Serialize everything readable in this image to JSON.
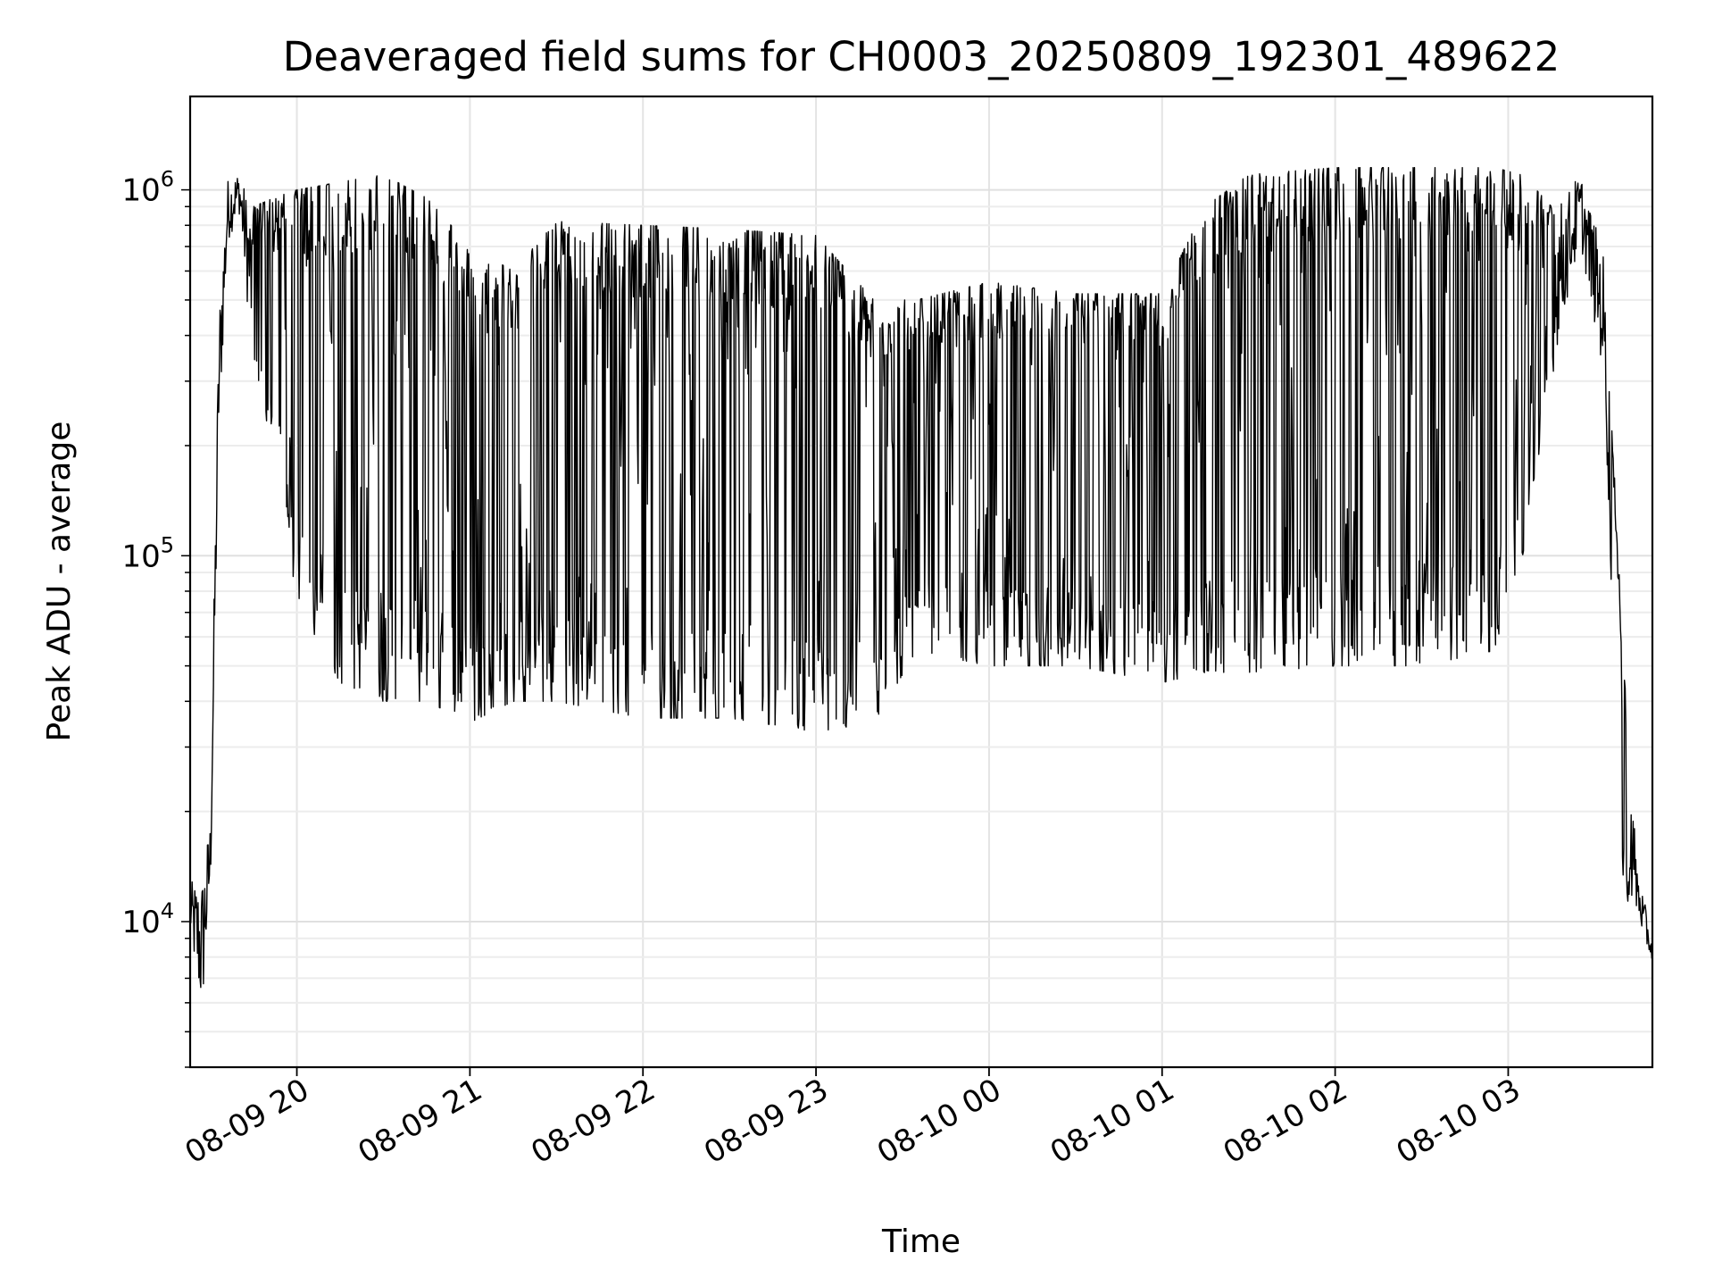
{
  "chart_data": {
    "type": "line",
    "title": "Deaveraged field sums for CH0003_20250809_192301_489622",
    "xlabel": "Time",
    "ylabel": "Peak ADU - average",
    "yscale": "log",
    "ylim": [
      4000,
      1800000
    ],
    "xlim": [
      "2025-08-09 19:23",
      "2025-08-10 03:50"
    ],
    "grid": true,
    "line_color": "#000000",
    "x_ticks": [
      {
        "value": "2025-08-09 20:00",
        "label": "08-09 20"
      },
      {
        "value": "2025-08-09 21:00",
        "label": "08-09 21"
      },
      {
        "value": "2025-08-09 22:00",
        "label": "08-09 22"
      },
      {
        "value": "2025-08-09 23:00",
        "label": "08-09 23"
      },
      {
        "value": "2025-08-10 00:00",
        "label": "08-10 00"
      },
      {
        "value": "2025-08-10 01:00",
        "label": "08-10 01"
      },
      {
        "value": "2025-08-10 02:00",
        "label": "08-10 02"
      },
      {
        "value": "2025-08-10 03:00",
        "label": "08-10 03"
      }
    ],
    "y_ticks": [
      {
        "value": 10000,
        "base": "10",
        "exp": "4"
      },
      {
        "value": 100000,
        "base": "10",
        "exp": "5"
      },
      {
        "value": 1000000,
        "base": "10",
        "exp": "6"
      }
    ],
    "series": [
      {
        "envelope_points": [
          {
            "x": "2025-08-09 19:23",
            "lo": 9000,
            "hi": 13000
          },
          {
            "x": "2025-08-09 19:27",
            "lo": 5000,
            "hi": 14000
          },
          {
            "x": "2025-08-09 19:30",
            "lo": 11000,
            "hi": 20000
          },
          {
            "x": "2025-08-09 19:33",
            "lo": 200000,
            "hi": 500000
          },
          {
            "x": "2025-08-09 19:36",
            "lo": 700000,
            "hi": 1100000
          },
          {
            "x": "2025-08-09 19:40",
            "lo": 850000,
            "hi": 1150000
          },
          {
            "x": "2025-08-09 19:45",
            "lo": 300000,
            "hi": 900000
          },
          {
            "x": "2025-08-09 19:52",
            "lo": 200000,
            "hi": 950000
          },
          {
            "x": "2025-08-09 20:00",
            "lo": 75000,
            "hi": 1000000
          },
          {
            "x": "2025-08-09 20:15",
            "lo": 45000,
            "hi": 1050000
          },
          {
            "x": "2025-08-09 20:30",
            "lo": 40000,
            "hi": 1100000
          },
          {
            "x": "2025-08-09 20:45",
            "lo": 40000,
            "hi": 950000
          },
          {
            "x": "2025-08-09 21:00",
            "lo": 35000,
            "hi": 700000
          },
          {
            "x": "2025-08-09 21:15",
            "lo": 40000,
            "hi": 600000
          },
          {
            "x": "2025-08-09 21:30",
            "lo": 40000,
            "hi": 820000
          },
          {
            "x": "2025-08-09 22:00",
            "lo": 36000,
            "hi": 800000
          },
          {
            "x": "2025-08-09 22:30",
            "lo": 36000,
            "hi": 780000
          },
          {
            "x": "2025-08-09 23:00",
            "lo": 33000,
            "hi": 750000
          },
          {
            "x": "2025-08-09 23:20",
            "lo": 35000,
            "hi": 500000
          },
          {
            "x": "2025-08-09 23:35",
            "lo": 55000,
            "hi": 500000
          },
          {
            "x": "2025-08-10 00:00",
            "lo": 50000,
            "hi": 560000
          },
          {
            "x": "2025-08-10 00:30",
            "lo": 50000,
            "hi": 520000
          },
          {
            "x": "2025-08-10 01:00",
            "lo": 45000,
            "hi": 520000
          },
          {
            "x": "2025-08-10 01:15",
            "lo": 48000,
            "hi": 900000
          },
          {
            "x": "2025-08-10 01:30",
            "lo": 48000,
            "hi": 1100000
          },
          {
            "x": "2025-08-10 02:00",
            "lo": 50000,
            "hi": 1150000
          },
          {
            "x": "2025-08-10 02:30",
            "lo": 50000,
            "hi": 1150000
          },
          {
            "x": "2025-08-10 02:55",
            "lo": 55000,
            "hi": 1150000
          },
          {
            "x": "2025-08-10 03:05",
            "lo": 100000,
            "hi": 1100000
          },
          {
            "x": "2025-08-10 03:15",
            "lo": 300000,
            "hi": 900000
          },
          {
            "x": "2025-08-10 03:25",
            "lo": 700000,
            "hi": 1150000
          },
          {
            "x": "2025-08-10 03:33",
            "lo": 300000,
            "hi": 700000
          },
          {
            "x": "2025-08-10 03:40",
            "lo": 12000,
            "hi": 50000
          },
          {
            "x": "2025-08-10 03:45",
            "lo": 10000,
            "hi": 14000
          },
          {
            "x": "2025-08-10 03:50",
            "lo": 7500,
            "hi": 9000
          }
        ]
      }
    ]
  }
}
